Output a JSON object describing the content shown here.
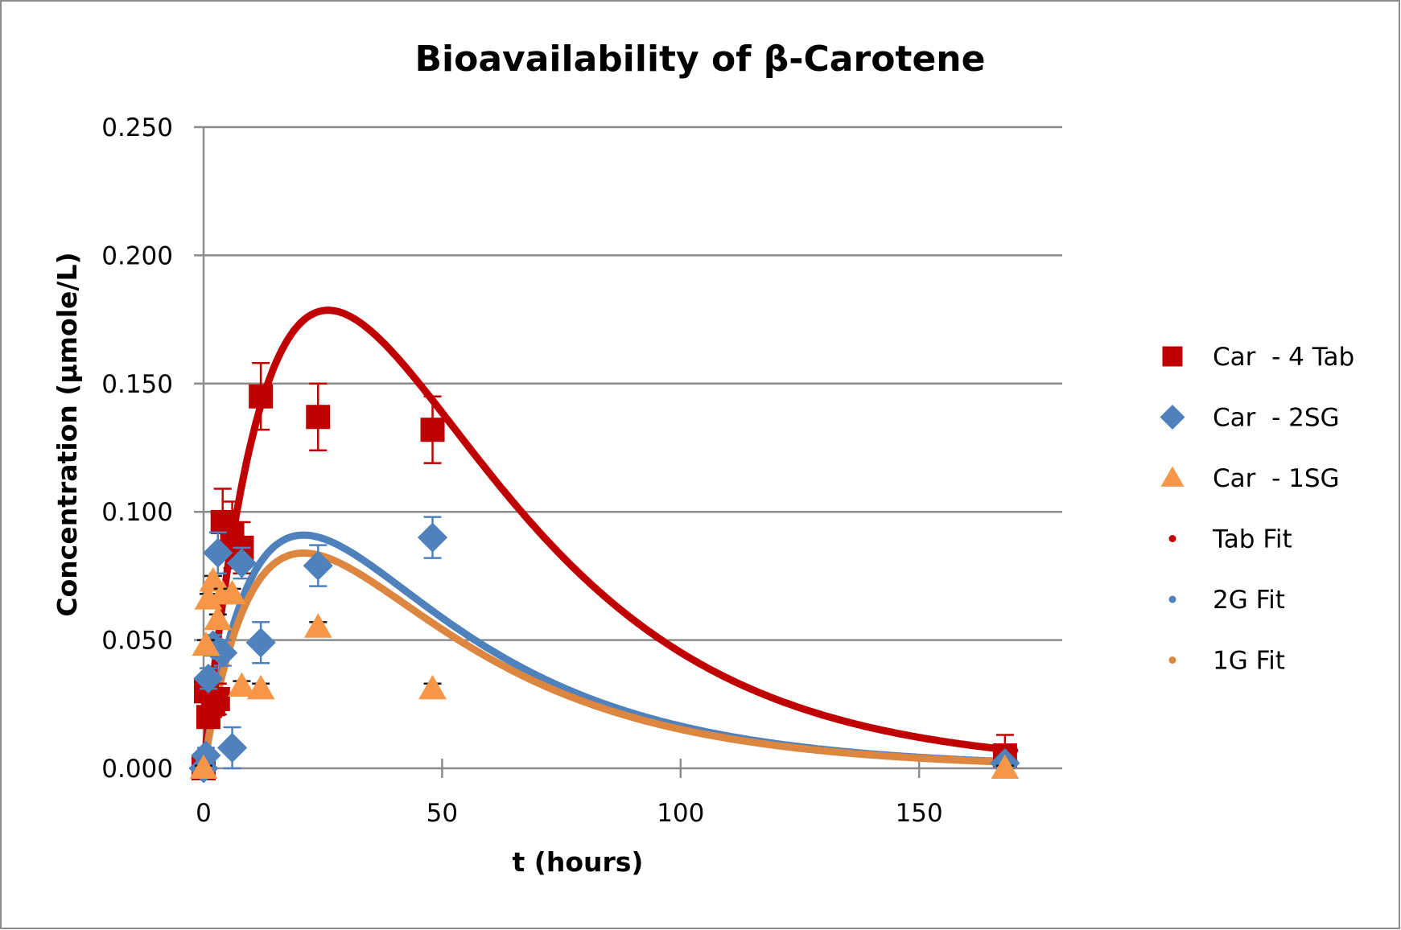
{
  "chart_data": {
    "type": "scatter",
    "title": "Bioavailability of β-Carotene",
    "xlabel": "t (hours)",
    "ylabel": "Concentration  (μmole/L)",
    "xlim": [
      0,
      180
    ],
    "ylim": [
      0,
      0.25
    ],
    "x_ticks": [
      0,
      50,
      100,
      150
    ],
    "x_tick_labels": [
      "0",
      "50",
      "100",
      "150"
    ],
    "y_ticks": [
      0,
      0.05,
      0.1,
      0.15,
      0.2,
      0.25
    ],
    "y_tick_labels": [
      "0.000",
      "0.050",
      "0.100",
      "0.150",
      "0.200",
      "0.250"
    ],
    "grid": "horizontal",
    "legend_position": "right",
    "series": [
      {
        "name": "Car  - 4 Tab",
        "kind": "points",
        "marker": "square",
        "color": "#C00000",
        "x": [
          0,
          0.5,
          1,
          2,
          3,
          4,
          6,
          8,
          12,
          24,
          48,
          168
        ],
        "y": [
          0.0,
          0.03,
          0.02,
          0.025,
          0.027,
          0.096,
          0.091,
          0.086,
          0.145,
          0.137,
          0.132,
          0.005
        ],
        "error": [
          0.002,
          0.004,
          0.004,
          0.005,
          0.006,
          0.013,
          0.013,
          0.01,
          0.013,
          0.013,
          0.013,
          0.008
        ]
      },
      {
        "name": "Car  - 2SG",
        "kind": "points",
        "marker": "diamond",
        "color": "#4F81BD",
        "x": [
          0,
          0.5,
          1,
          2,
          3,
          4,
          6,
          8,
          12,
          24,
          48,
          168
        ],
        "y": [
          0.0,
          0.005,
          0.035,
          0.048,
          0.084,
          0.045,
          0.008,
          0.08,
          0.049,
          0.079,
          0.09,
          0.002
        ],
        "error": [
          0.001,
          0.003,
          0.004,
          0.004,
          0.008,
          0.005,
          0.008,
          0.006,
          0.008,
          0.008,
          0.008,
          0.002
        ]
      },
      {
        "name": "Car  - 1SG",
        "kind": "points",
        "marker": "triangle",
        "color": "#F79646",
        "x": [
          0,
          0.5,
          1,
          2,
          3,
          4,
          6,
          8,
          12,
          24,
          48,
          168
        ],
        "y": [
          0.0,
          0.048,
          0.066,
          0.073,
          0.058,
          0.068,
          0.068,
          0.032,
          0.031,
          0.055,
          0.031,
          0.0
        ],
        "error": [
          0.001,
          0.002,
          0.002,
          0.002,
          0.002,
          0.002,
          0.002,
          0.002,
          0.002,
          0.002,
          0.002,
          0.001
        ]
      },
      {
        "name": "Tab Fit",
        "kind": "fit",
        "color": "#C00000",
        "model": "A*(exp(-ke*t)-exp(-ka*t))",
        "params": {
          "A": 0.817,
          "ke": 0.0279,
          "ka": 0.051
        },
        "x_range": [
          0,
          170
        ],
        "peak": {
          "x": 26,
          "y": 0.178
        }
      },
      {
        "name": "2G Fit",
        "kind": "fit",
        "color": "#4F81BD",
        "model": "A*(exp(-ke*t)-exp(-ka*t))",
        "params": {
          "A": 0.2466,
          "ke": 0.027,
          "ka": 0.077
        },
        "x_range": [
          0,
          170
        ],
        "peak": {
          "x": 21,
          "y": 0.091
        }
      },
      {
        "name": "1G Fit",
        "kind": "fit",
        "color": "#DD8640",
        "model": "A*(exp(-ke*t)-exp(-ka*t))",
        "params": {
          "A": 0.2276,
          "ke": 0.027,
          "ka": 0.077
        },
        "x_range": [
          0,
          170
        ],
        "peak": {
          "x": 21,
          "y": 0.084
        }
      }
    ],
    "legend": [
      {
        "label": "Car  - 4 Tab",
        "marker": "square",
        "color": "#C00000"
      },
      {
        "label": "Car  - 2SG",
        "marker": "diamond",
        "color": "#4F81BD"
      },
      {
        "label": "Car  - 1SG",
        "marker": "triangle",
        "color": "#F79646"
      },
      {
        "label": "Tab Fit",
        "marker": "dot",
        "color": "#C00000"
      },
      {
        "label": "2G Fit",
        "marker": "dot",
        "color": "#4F81BD"
      },
      {
        "label": "1G Fit",
        "marker": "dot",
        "color": "#DD8640"
      }
    ]
  },
  "colors": {
    "grid": "#8C8C8C",
    "border": "#8C8C8C",
    "text": "#000000"
  }
}
